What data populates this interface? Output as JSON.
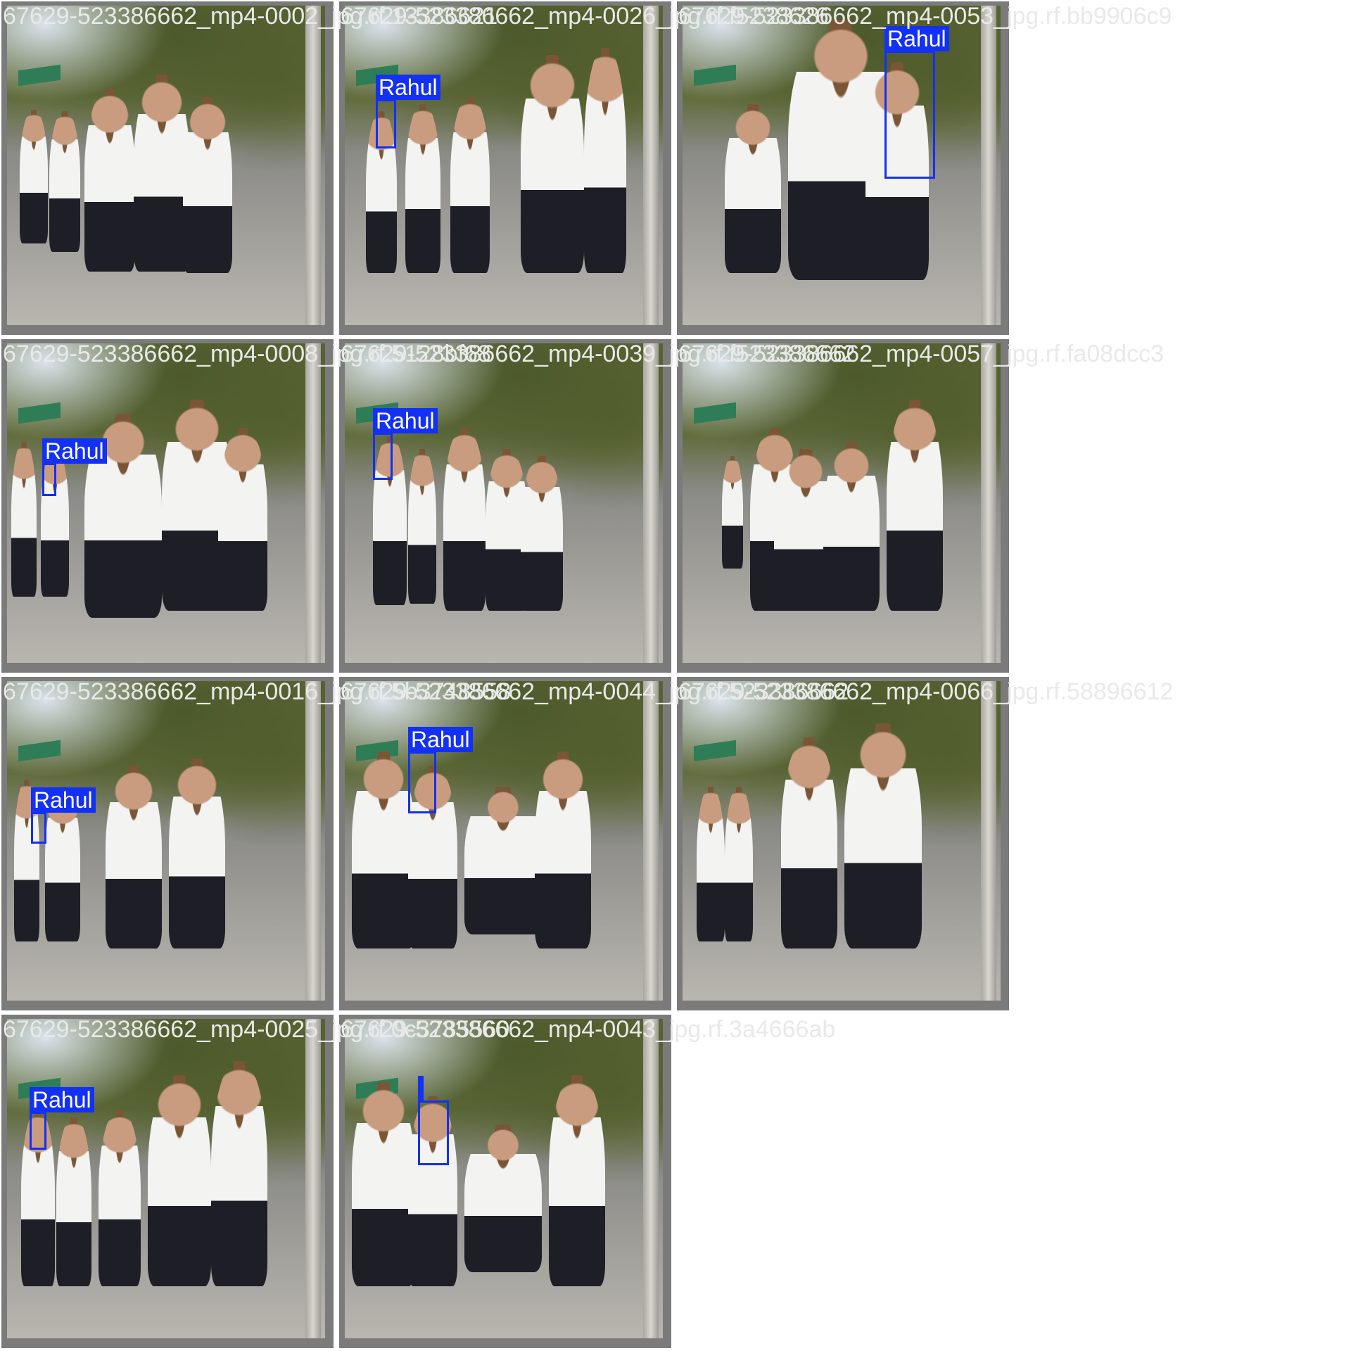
{
  "tiles": [
    {
      "filename": "67629-523386662_mp4-0002_jpg.rf.13386621",
      "label": ""
    },
    {
      "filename": "67629-523386662_mp4-0026_jpg.rf.f5238626",
      "label": "Rahul"
    },
    {
      "filename": "67629-523386662_mp4-0053_jpg.rf.bb9906c9",
      "label": "Rahul"
    },
    {
      "filename": "67629-523386662_mp4-0008_jpg.rf.5128bf68",
      "label": "Rahul"
    },
    {
      "filename": "67629-523386662_mp4-0039_jpg.rf.f523386662",
      "label": "Rahul"
    },
    {
      "filename": "67629-523386662_mp4-0057_jpg.rf.fa08dcc3",
      "label": ""
    },
    {
      "filename": "67629-523386662_mp4-0016_jpg.rf.5b3748558",
      "label": "Rahul"
    },
    {
      "filename": "67629-523386662_mp4-0044_jpg.rf.523386662",
      "label": "Rahul"
    },
    {
      "filename": "67629-523386662_mp4-0066_jpg.rf.58896612",
      "label": ""
    },
    {
      "filename": "67629-523386662_mp4-0025_jpg.rf.0c3785560",
      "label": "Rahul"
    },
    {
      "filename": "67629-523386662_mp4-0043_jpg.rf.3a4666ab",
      "label": ""
    }
  ]
}
